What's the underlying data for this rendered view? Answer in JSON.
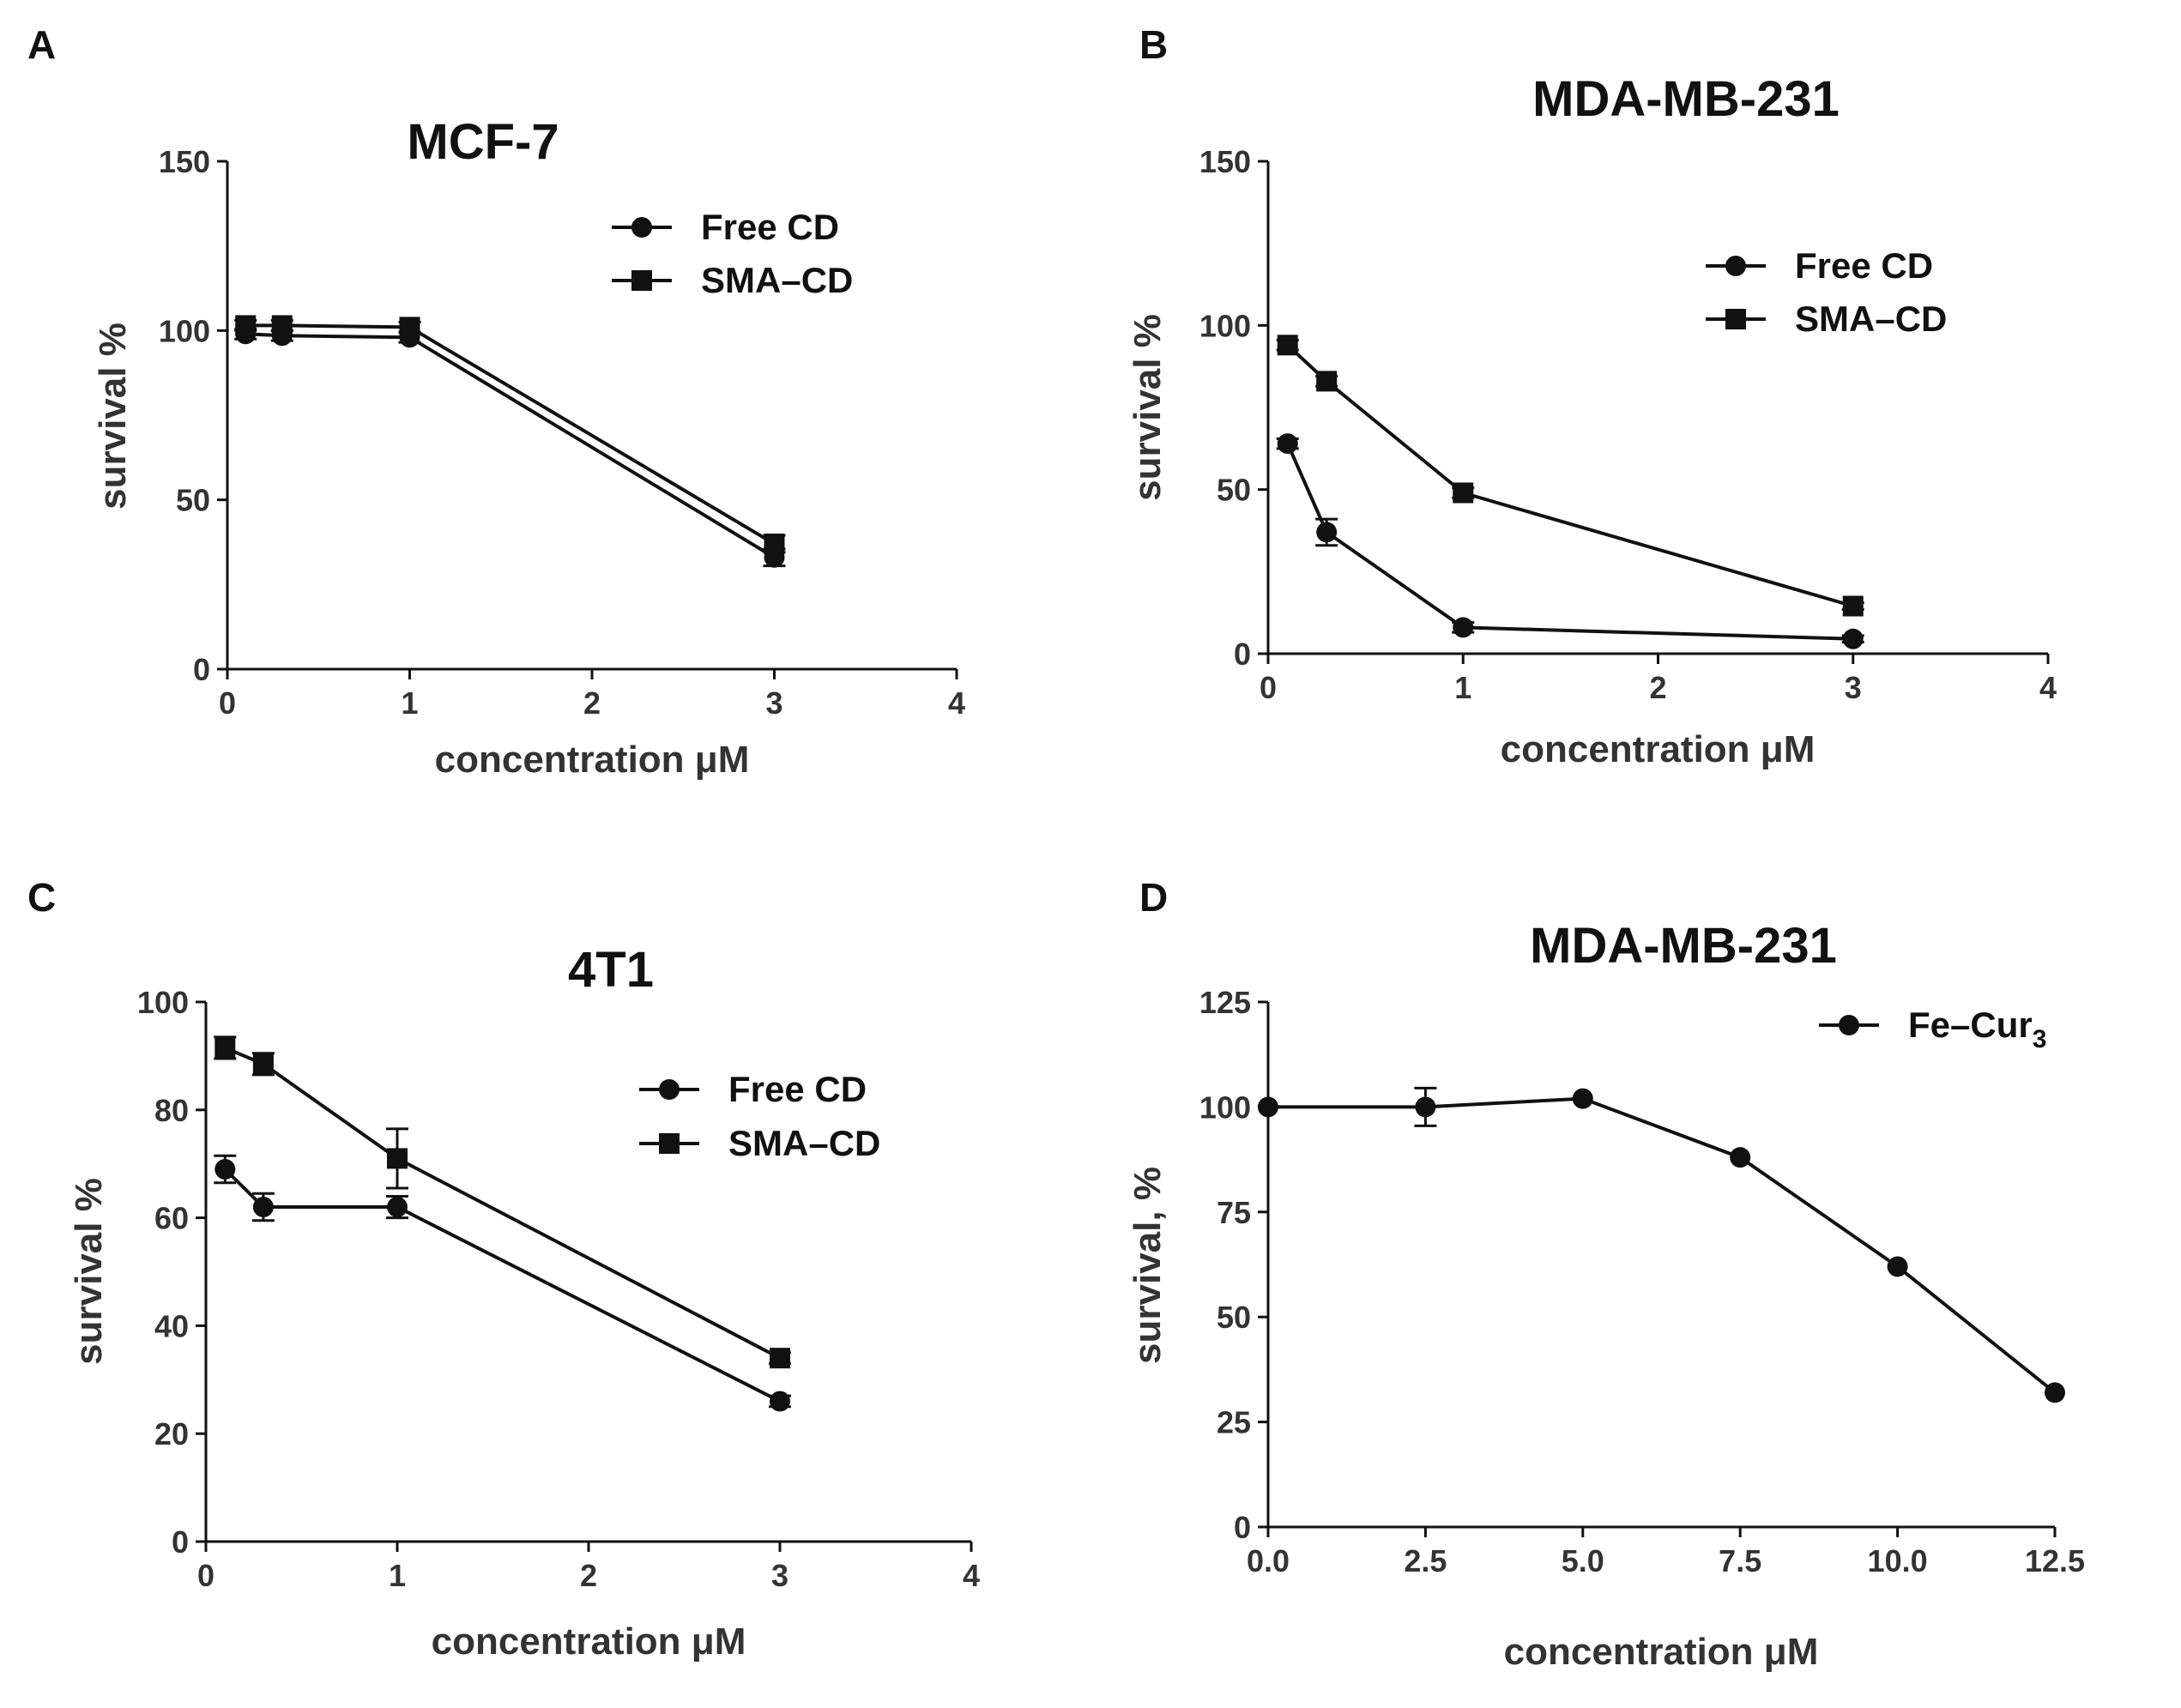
{
  "chart_data": [
    {
      "panel": "A",
      "type": "line",
      "title": "MCF-7",
      "xlabel": "concentration μM",
      "ylabel": "survival %",
      "xlim": [
        0,
        4
      ],
      "ylim": [
        0,
        150
      ],
      "xticks": [
        "0",
        "1",
        "2",
        "3",
        "4"
      ],
      "yticks": [
        "0",
        "50",
        "100",
        "150"
      ],
      "legend_position": "top-right",
      "series": [
        {
          "name": "Free CD",
          "marker": "circle",
          "x": [
            0.1,
            0.3,
            1,
            3
          ],
          "y": [
            99,
            98.5,
            98,
            33
          ],
          "err": [
            1.5,
            1.5,
            1.5,
            2.5
          ]
        },
        {
          "name": "SMA–CD",
          "marker": "square",
          "x": [
            0.1,
            0.3,
            1,
            3
          ],
          "y": [
            101.5,
            101.5,
            101,
            37
          ],
          "err": [
            1.5,
            1.5,
            1.5,
            2.5
          ]
        }
      ]
    },
    {
      "panel": "B",
      "type": "line",
      "title": "MDA-MB-231",
      "xlabel": "concentration μM",
      "ylabel": "survival %",
      "xlim": [
        0,
        4
      ],
      "ylim": [
        0,
        150
      ],
      "xticks": [
        "0",
        "1",
        "2",
        "3",
        "4"
      ],
      "yticks": [
        "0",
        "50",
        "100",
        "150"
      ],
      "legend_position": "top-right",
      "series": [
        {
          "name": "Free CD",
          "marker": "circle",
          "x": [
            0.1,
            0.3,
            1,
            3
          ],
          "y": [
            64,
            37,
            8,
            4.5
          ],
          "err": [
            1.5,
            4,
            1.5,
            1
          ]
        },
        {
          "name": "SMA–CD",
          "marker": "square",
          "x": [
            0.1,
            0.3,
            1,
            3
          ],
          "y": [
            94,
            83,
            49,
            14.5
          ],
          "err": [
            1.5,
            1.5,
            1.5,
            1
          ]
        }
      ]
    },
    {
      "panel": "C",
      "type": "line",
      "title": "4T1",
      "xlabel": "concentration μM",
      "ylabel": "survival %",
      "xlim": [
        0,
        4
      ],
      "ylim": [
        0,
        100
      ],
      "xticks": [
        "0",
        "1",
        "2",
        "3",
        "4"
      ],
      "yticks": [
        "0",
        "20",
        "40",
        "60",
        "80",
        "100"
      ],
      "legend_position": "top-right",
      "series": [
        {
          "name": "Free CD",
          "marker": "circle",
          "x": [
            0.1,
            0.3,
            1,
            3
          ],
          "y": [
            69,
            62,
            62,
            26
          ],
          "err": [
            2.5,
            2.5,
            2,
            1
          ]
        },
        {
          "name": "SMA–CD",
          "marker": "square",
          "x": [
            0.1,
            0.3,
            1,
            3
          ],
          "y": [
            91.5,
            88.5,
            71,
            34
          ],
          "err": [
            2,
            2,
            5.5,
            1
          ]
        }
      ]
    },
    {
      "panel": "D",
      "type": "line",
      "title": "MDA-MB-231",
      "xlabel": "concentration μM",
      "ylabel": "survival, %",
      "xlim": [
        0,
        12.5
      ],
      "ylim": [
        0,
        125
      ],
      "xticks": [
        "0.0",
        "2.5",
        "5.0",
        "7.5",
        "10.0",
        "12.5"
      ],
      "yticks": [
        "0",
        "25",
        "50",
        "75",
        "100",
        "125"
      ],
      "legend_position": "top-right",
      "series": [
        {
          "name": "Fe–Cur",
          "name_subscript": "3",
          "marker": "circle",
          "x": [
            0,
            2.5,
            5,
            7.5,
            10,
            12.5
          ],
          "y": [
            100,
            100,
            102,
            88,
            62,
            32
          ],
          "err": [
            0,
            4.5,
            0,
            0,
            0,
            0
          ]
        }
      ]
    }
  ]
}
